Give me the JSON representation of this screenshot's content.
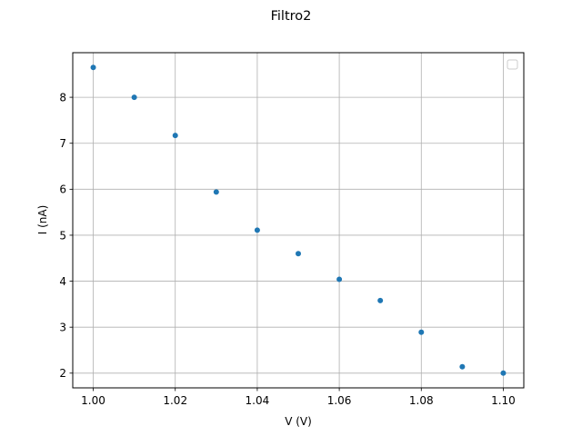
{
  "chart_data": {
    "type": "scatter",
    "title": "Filtro2",
    "xlabel": "V (V)",
    "ylabel": "I (nA)",
    "xlim": [
      0.995,
      1.105
    ],
    "ylim": [
      1.68,
      8.97
    ],
    "xticks": [
      1.0,
      1.02,
      1.04,
      1.06,
      1.08,
      1.1
    ],
    "xtick_labels": [
      "1.00",
      "1.02",
      "1.04",
      "1.06",
      "1.08",
      "1.10"
    ],
    "yticks": [
      2,
      3,
      4,
      5,
      6,
      7,
      8
    ],
    "ytick_labels": [
      "2",
      "3",
      "4",
      "5",
      "6",
      "7",
      "8"
    ],
    "grid": true,
    "legend_placement": "top-right",
    "marker_color": "#1f77b4",
    "series": [
      {
        "x": [
          1.0,
          1.01,
          1.02,
          1.03,
          1.04,
          1.05,
          1.06,
          1.07,
          1.08,
          1.09,
          1.1
        ],
        "y": [
          8.65,
          8.0,
          7.17,
          5.94,
          5.11,
          4.6,
          4.04,
          3.58,
          2.89,
          2.14,
          2.0
        ]
      }
    ]
  }
}
